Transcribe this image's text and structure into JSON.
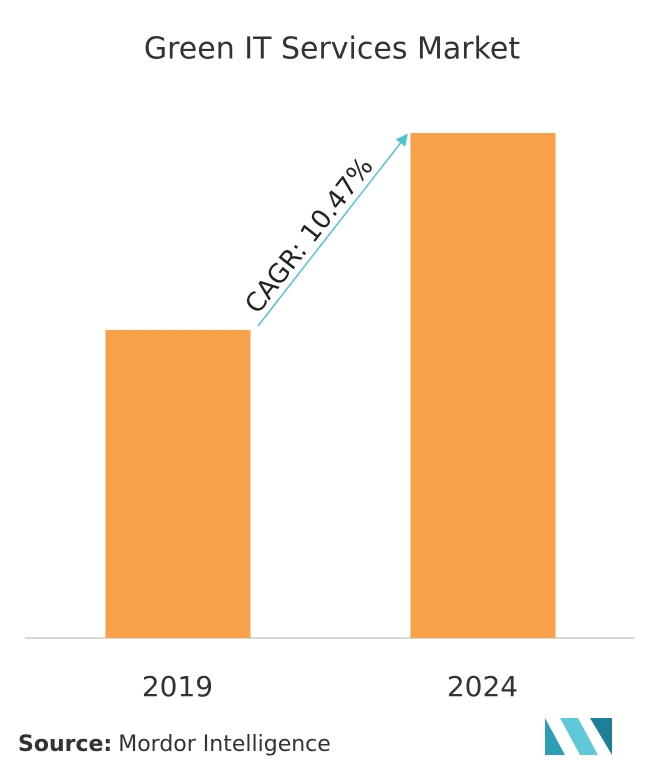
{
  "chart_data": {
    "type": "bar",
    "title": "Green IT Services Market",
    "categories": [
      "2019",
      "2024"
    ],
    "values": [
      61,
      100
    ],
    "color": "#f9a04a",
    "ylim": [
      0,
      100
    ],
    "annotation": "CAGR: 10.47%",
    "source_label": "Source:",
    "source": "Mordor Intelligence"
  }
}
